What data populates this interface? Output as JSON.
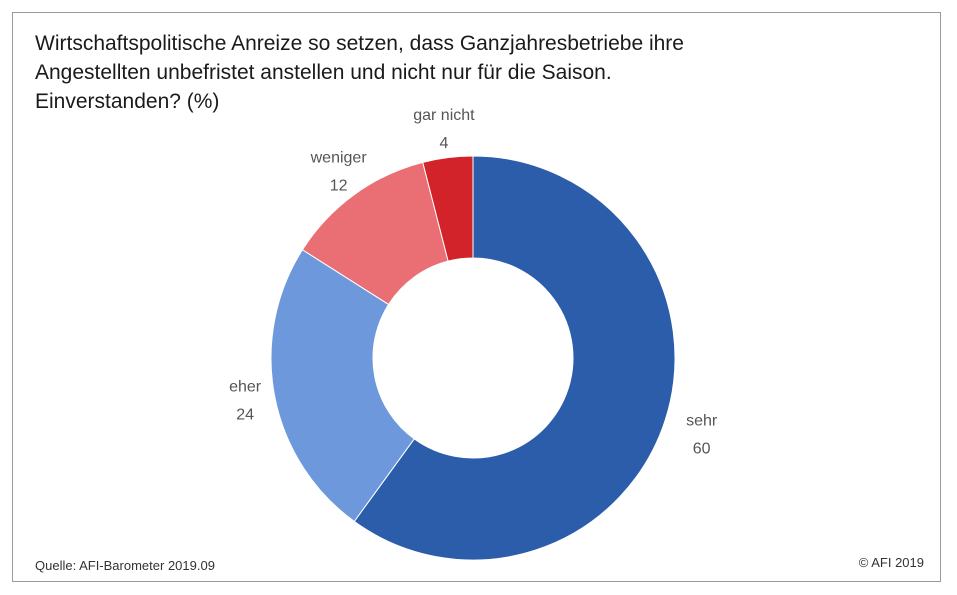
{
  "title_lines": [
    "Wirtschaftspolitische Anreize so setzen, dass Ganzjahresbetriebe ihre",
    "Angestellten unbefristet anstellen und nicht nur für die Saison.",
    "Einverstanden? (%)"
  ],
  "source": "Quelle: AFI-Barometer 2019.09",
  "copyright": "© AFI 2019",
  "chart_data": {
    "type": "pie",
    "variant": "donut",
    "title": "Wirtschaftspolitische Anreize so setzen, dass Ganzjahresbetriebe ihre Angestellten unbefristet anstellen und nicht nur für die Saison. Einverstanden? (%)",
    "categories": [
      "sehr",
      "eher",
      "weniger",
      "gar nicht"
    ],
    "values": [
      60,
      24,
      12,
      4
    ],
    "colors": [
      "#2b5dab",
      "#6d98dc",
      "#e96f75",
      "#d12329"
    ],
    "start": "12 o'clock, clockwise"
  }
}
